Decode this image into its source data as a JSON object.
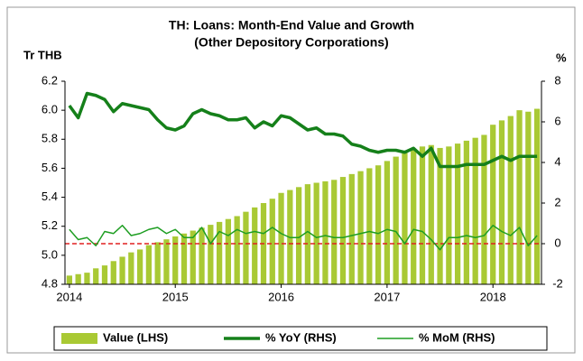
{
  "chart_data": {
    "type": "bar_line_combo",
    "title": "TH: Loans: Month-End Value and Growth",
    "subtitle": "(Other Depository Corporations)",
    "y_label": "Tr THB",
    "y2_label": "%",
    "categories": [
      "2014",
      null,
      null,
      null,
      null,
      null,
      null,
      null,
      null,
      null,
      null,
      null,
      "2015",
      null,
      null,
      null,
      null,
      null,
      null,
      null,
      null,
      null,
      null,
      null,
      "2016",
      null,
      null,
      null,
      null,
      null,
      null,
      null,
      null,
      null,
      null,
      null,
      "2017",
      null,
      null,
      null,
      null,
      null,
      null,
      null,
      null,
      null,
      null,
      null,
      "2018",
      null,
      null,
      null,
      null,
      null
    ],
    "series": [
      {
        "name": "Value (LHS)",
        "color": "#a9c934",
        "kind": "bar",
        "values": [
          4.86,
          4.87,
          4.88,
          4.91,
          4.93,
          4.96,
          4.99,
          5.02,
          5.04,
          5.07,
          5.09,
          5.11,
          5.13,
          5.15,
          5.17,
          5.19,
          5.21,
          5.23,
          5.25,
          5.27,
          5.3,
          5.33,
          5.36,
          5.39,
          5.43,
          5.45,
          5.47,
          5.49,
          5.5,
          5.51,
          5.52,
          5.54,
          5.56,
          5.58,
          5.6,
          5.62,
          5.65,
          5.68,
          5.71,
          5.73,
          5.75,
          5.76,
          5.74,
          5.75,
          5.77,
          5.79,
          5.81,
          5.83,
          5.9,
          5.93,
          5.96,
          6.0,
          5.99,
          6.01
        ]
      },
      {
        "name": "% YoY (RHS)",
        "color": "#15801a",
        "kind": "line",
        "width": 3.5,
        "axis": "y2",
        "values": [
          6.8,
          6.2,
          7.4,
          7.3,
          7.1,
          6.5,
          6.9,
          6.8,
          6.7,
          6.6,
          6.1,
          5.7,
          5.6,
          5.8,
          6.4,
          6.6,
          6.4,
          6.3,
          6.1,
          6.1,
          6.2,
          5.7,
          6.0,
          5.8,
          6.3,
          6.2,
          5.9,
          5.6,
          5.7,
          5.4,
          5.4,
          5.3,
          4.9,
          4.8,
          4.6,
          4.5,
          4.6,
          4.6,
          4.5,
          4.7,
          4.3,
          4.7,
          3.8,
          3.8,
          3.8,
          3.9,
          3.9,
          3.9,
          4.1,
          4.3,
          4.1,
          4.3,
          4.3,
          4.3
        ]
      },
      {
        "name": "% MoM (RHS)",
        "color": "#1e9e22",
        "kind": "line",
        "width": 1.5,
        "axis": "y2",
        "values": [
          0.7,
          0.2,
          0.3,
          -0.1,
          0.6,
          0.5,
          0.9,
          0.4,
          0.5,
          0.7,
          0.8,
          0.5,
          0.7,
          0.3,
          0.3,
          0.8,
          0.0,
          0.6,
          0.4,
          0.7,
          0.5,
          0.6,
          0.5,
          0.8,
          0.5,
          0.3,
          0.3,
          0.6,
          0.3,
          0.4,
          0.3,
          0.3,
          0.4,
          0.5,
          0.6,
          0.5,
          0.7,
          0.6,
          0.0,
          0.7,
          0.6,
          0.2,
          -0.3,
          0.3,
          0.3,
          0.4,
          0.3,
          0.4,
          0.9,
          0.6,
          0.4,
          0.8,
          -0.1,
          0.4
        ]
      }
    ],
    "ylim": [
      4.8,
      6.2
    ],
    "yticks": [
      4.8,
      {
        "value": 5,
        "label": "5.0"
      },
      5.2,
      5.4,
      5.6,
      5.8,
      {
        "value": 6,
        "label": "6.0"
      },
      6.2
    ],
    "y2lim": [
      -2,
      8
    ],
    "y2ticks": [
      -2,
      0,
      2,
      4,
      6,
      8
    ],
    "zero_line_color": "#e02020",
    "legend": "bottom"
  }
}
